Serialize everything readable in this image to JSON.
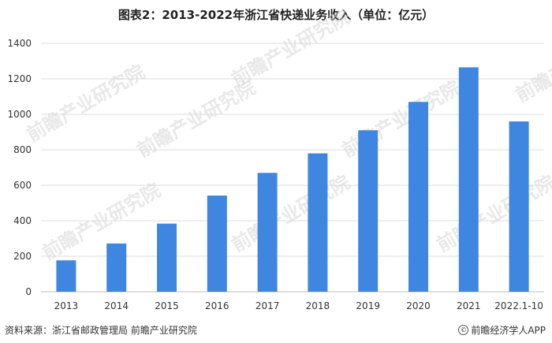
{
  "title": "图表2：2013-2022年浙江省快递业务收入（单位：亿元）",
  "source": "资料来源：浙江省邮政管理局 前瞻产业研究院",
  "brand": {
    "mark": "©",
    "label": "前瞻经济学人APP"
  },
  "watermark": "前瞻产业研究院",
  "colors": {
    "bar": "#3f86e0",
    "grid": "#dcdcdc",
    "axis": "#bfbfbf",
    "text": "#333333"
  },
  "chart_data": {
    "type": "bar",
    "categories": [
      "2013",
      "2014",
      "2015",
      "2016",
      "2017",
      "2018",
      "2019",
      "2020",
      "2021",
      "2022.1-10"
    ],
    "values": [
      177,
      272,
      384,
      542,
      670,
      780,
      910,
      1070,
      1265,
      960
    ],
    "title": "图表2：2013-2022年浙江省快递业务收入（单位：亿元）",
    "xlabel": "",
    "ylabel": "",
    "ylim": [
      0,
      1400
    ],
    "yticks": [
      0,
      200,
      400,
      600,
      800,
      1000,
      1200,
      1400
    ],
    "grid": true,
    "legend": "none"
  }
}
